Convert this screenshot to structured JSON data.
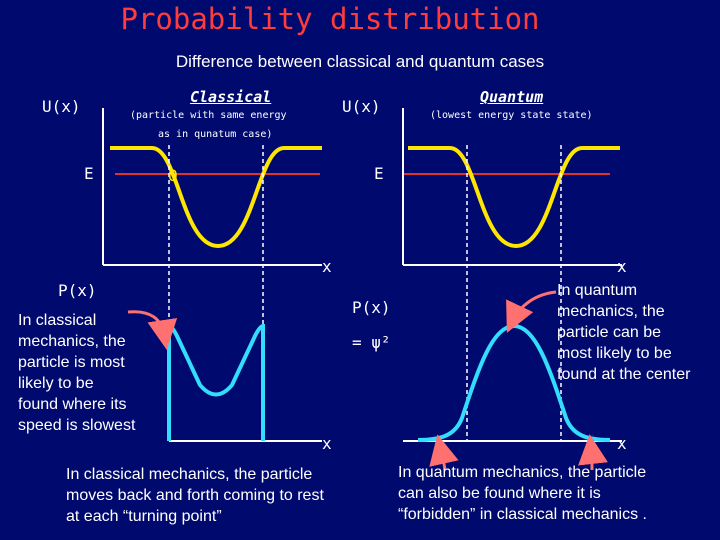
{
  "title": "Probability distribution",
  "subtitle": "Difference between classical and quantum cases",
  "classical": {
    "heading": "Classical",
    "note_line1": "(particle with same energy",
    "note_line2": "as in qunatum case)",
    "u_label": "U(x)",
    "e_label": "E",
    "point_label": "O",
    "p_label": "P(x)",
    "axis_mark_top": "x",
    "axis_mark_bottom": "x",
    "explanation_lines": [
      "In classical",
      "mechanics, the",
      "particle is most",
      "likely to be",
      "found where its",
      "speed is slowest"
    ],
    "caption_lines": [
      "In classical mechanics, the particle",
      "moves back and forth coming to rest",
      "at each “turning point”"
    ]
  },
  "quantum": {
    "heading": "Quantum",
    "note": "(lowest energy state state)",
    "u_label": "U(x)",
    "e_label": "E",
    "p_label": "P(x)",
    "psi_label": "= ψ²",
    "axis_mark_top": "x",
    "axis_mark_bottom": "x",
    "explanation_lines": [
      "In quantum",
      "mechanics, the",
      "particle can be",
      "most likely to be",
      "found at the center"
    ],
    "caption_lines": [
      "In quantum mechanics, the particle",
      "can also be found where it is",
      "“forbidden” in classical mechanics ."
    ]
  },
  "colors": {
    "background": "#000a6e",
    "title": "#ff3c3c",
    "curve": "#ffe600",
    "energy_line": "#e03030",
    "probability": "#33ddff",
    "arrow": "#ff7070",
    "axis": "#ffffff"
  }
}
